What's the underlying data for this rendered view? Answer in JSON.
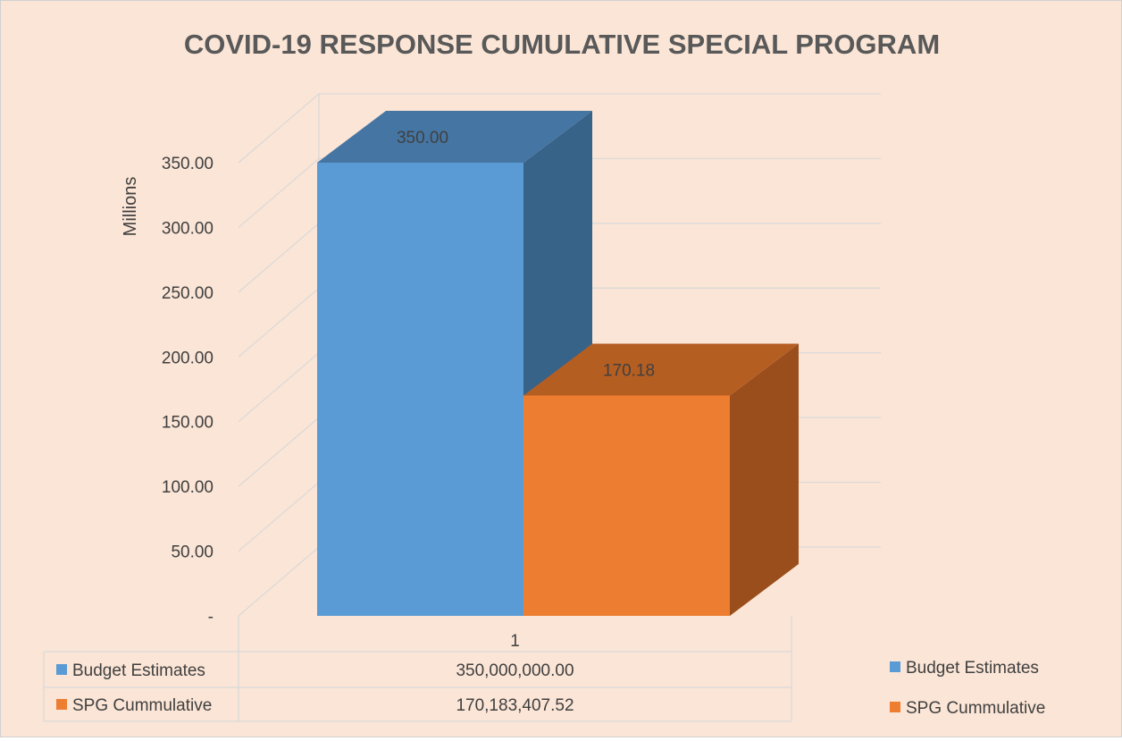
{
  "chart_data": {
    "type": "bar",
    "title": "COVID-19 RESPONSE CUMULATIVE SPECIAL PROGRAM",
    "ylabel": "Millions",
    "xlabel": "",
    "categories": [
      "1"
    ],
    "ylim": [
      0,
      350
    ],
    "yticks": [
      {
        "value": 0,
        "label": "-"
      },
      {
        "value": 50,
        "label": "50.00"
      },
      {
        "value": 100,
        "label": "100.00"
      },
      {
        "value": 150,
        "label": "150.00"
      },
      {
        "value": 200,
        "label": "200.00"
      },
      {
        "value": 250,
        "label": "250.00"
      },
      {
        "value": 300,
        "label": "300.00"
      },
      {
        "value": 350,
        "label": "350.00"
      }
    ],
    "series": [
      {
        "name": "Budget Estimates",
        "values": [
          350.0
        ],
        "value_label": "350.00",
        "table_value": "350,000,000.00",
        "color": "#5b9bd5",
        "top_color": "#4575a3",
        "side_color": "#376389"
      },
      {
        "name": "SPG Cummulative",
        "values": [
          170.18
        ],
        "value_label": "170.18",
        "table_value": "170,183,407.52",
        "color": "#ed7d31",
        "top_color": "#b55e22",
        "side_color": "#9a4e1b"
      }
    ],
    "legend": "right",
    "data_table": true,
    "grid": true,
    "style": "3d-column"
  }
}
